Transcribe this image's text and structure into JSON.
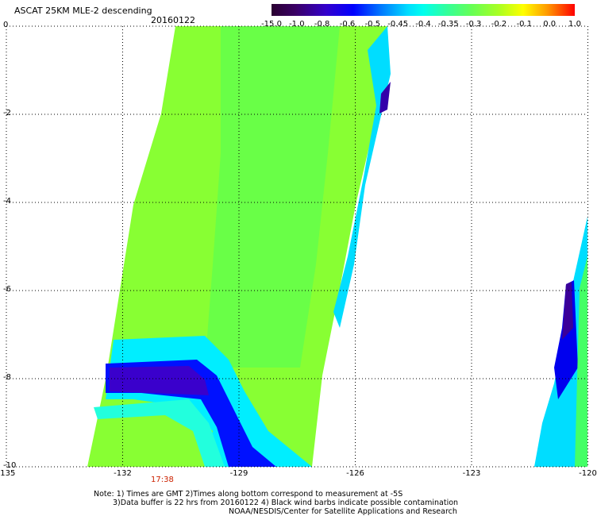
{
  "header": {
    "title": "ASCAT 25KM MLE-2 descending",
    "date": "20160122"
  },
  "colorbar": {
    "labels": [
      "-15.0",
      "-1.0",
      "-0.8",
      "-0.6",
      "-0.5",
      "-0.45",
      "-0.4",
      "-0.35",
      "-0.3",
      "-0.2",
      "-0.1",
      "0.0",
      "1.0"
    ],
    "colors": [
      "#3a0033",
      "#3a0099",
      "#0000ff",
      "#0066ff",
      "#00ccff",
      "#00ffee",
      "#44ff99",
      "#88ff44",
      "#aaff22",
      "#ffff00",
      "#ffaa00",
      "#ff5500",
      "#ff0000"
    ]
  },
  "axes": {
    "x_ticks": [
      "-135",
      "-132",
      "-129",
      "-126",
      "-123",
      "-120"
    ],
    "y_ticks": [
      "0",
      "-2",
      "-4",
      "-6",
      "-8",
      "-10"
    ]
  },
  "time_label": "17:38",
  "notes": {
    "line1": "Note: 1) Times are GMT 2)Times along bottom correspond to measurement at -5S",
    "line2": "3)Data buffer is 22 hrs from 20160122 4) Black wind barbs indicate possible contamination",
    "line3": "NOAA/NESDIS/Center for Satellite Applications and Research"
  }
}
